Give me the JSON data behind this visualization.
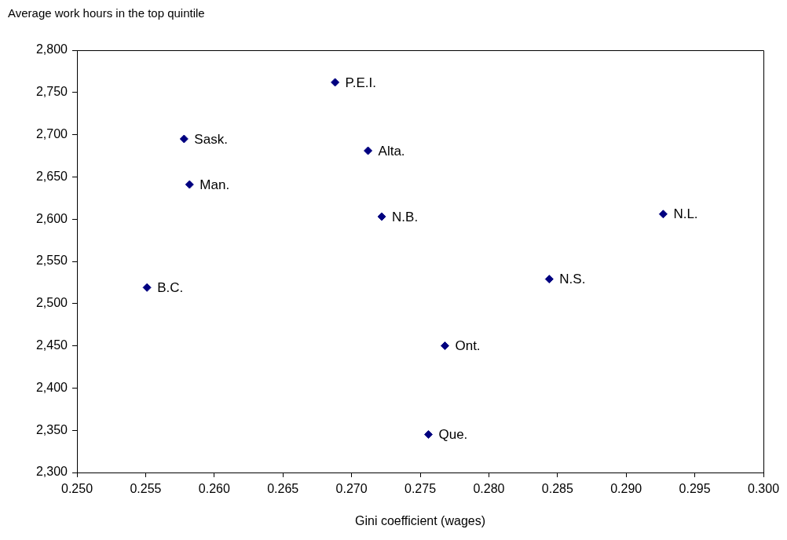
{
  "chart_data": {
    "type": "scatter",
    "ylabel": "Average work hours in the top quintile",
    "xlabel": "Gini coefficient (wages)",
    "series": [
      {
        "color": "#000080",
        "x": [
          0.2688,
          0.2578,
          0.2712,
          0.2582,
          0.2722,
          0.2927,
          0.2844,
          0.2551,
          0.2768,
          0.2756
        ],
        "values": [
          2762,
          2695,
          2681,
          2641,
          2603,
          2606,
          2529,
          2519,
          2450,
          2345
        ]
      }
    ],
    "annotations": [
      {
        "text": "P.E.I.",
        "x": 0.2688,
        "y": 2762
      },
      {
        "text": "Sask.",
        "x": 0.2578,
        "y": 2695
      },
      {
        "text": "Alta.",
        "x": 0.2712,
        "y": 2681
      },
      {
        "text": "Man.",
        "x": 0.2582,
        "y": 2641
      },
      {
        "text": "N.B.",
        "x": 0.2722,
        "y": 2603
      },
      {
        "text": "N.L.",
        "x": 0.2927,
        "y": 2606
      },
      {
        "text": "N.S.",
        "x": 0.2844,
        "y": 2529
      },
      {
        "text": "B.C.",
        "x": 0.2551,
        "y": 2519
      },
      {
        "text": "Ont.",
        "x": 0.2768,
        "y": 2450
      },
      {
        "text": "Que.",
        "x": 0.2756,
        "y": 2345
      }
    ],
    "xlim": [
      0.25,
      0.3
    ],
    "xticks": [
      {
        "value": 0.25,
        "label": "0.250"
      },
      {
        "value": 0.255,
        "label": "0.255"
      },
      {
        "value": 0.26,
        "label": "0.260"
      },
      {
        "value": 0.265,
        "label": "0.265"
      },
      {
        "value": 0.27,
        "label": "0.270"
      },
      {
        "value": 0.275,
        "label": "0.275"
      },
      {
        "value": 0.28,
        "label": "0.280"
      },
      {
        "value": 0.285,
        "label": "0.285"
      },
      {
        "value": 0.29,
        "label": "0.290"
      },
      {
        "value": 0.295,
        "label": "0.295"
      },
      {
        "value": 0.3,
        "label": "0.300"
      }
    ],
    "ylim": [
      2300,
      2800
    ],
    "yticks": [
      {
        "value": 2300,
        "label": "2,300"
      },
      {
        "value": 2350,
        "label": "2,350"
      },
      {
        "value": 2400,
        "label": "2,400"
      },
      {
        "value": 2450,
        "label": "2,450"
      },
      {
        "value": 2500,
        "label": "2,500"
      },
      {
        "value": 2550,
        "label": "2,550"
      },
      {
        "value": 2600,
        "label": "2,600"
      },
      {
        "value": 2650,
        "label": "2,650"
      },
      {
        "value": 2700,
        "label": "2,700"
      },
      {
        "value": 2750,
        "label": "2,750"
      },
      {
        "value": 2800,
        "label": "2,800"
      }
    ],
    "grid": false,
    "legend": false,
    "marker": "diamond"
  }
}
